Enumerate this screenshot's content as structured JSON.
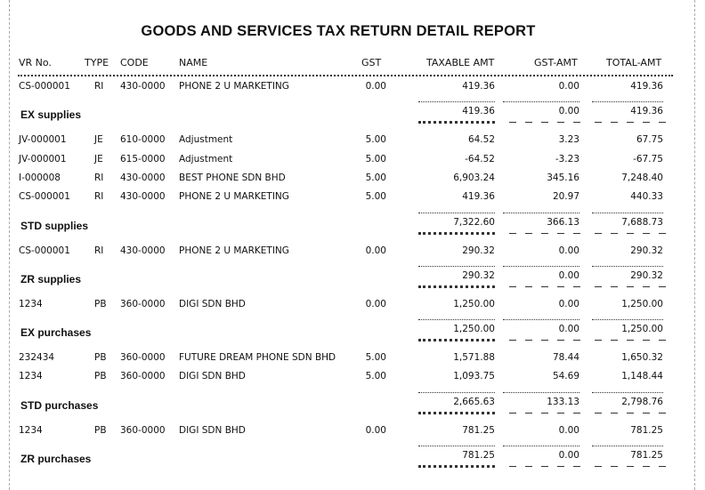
{
  "report": {
    "title": "GOODS AND SERVICES TAX RETURN DETAIL REPORT"
  },
  "columns": {
    "vr_no": "VR No.",
    "type": "TYPE",
    "code": "CODE",
    "name": "NAME",
    "gst": "GST",
    "taxable_amt": "TAXABLE AMT",
    "gst_amt": "GST-AMT",
    "total_amt": "TOTAL-AMT"
  },
  "groups": [
    {
      "label": "EX supplies",
      "rows": [
        {
          "vr": "CS-000001",
          "type": "RI",
          "code": "430-0000",
          "name": "PHONE 2 U MARKETING",
          "gst": "0.00",
          "taxable": "419.36",
          "gst_amt": "0.00",
          "total": "419.36"
        }
      ],
      "subtotal": {
        "taxable": "419.36",
        "gst_amt": "0.00",
        "total": "419.36"
      }
    },
    {
      "label": "STD supplies",
      "rows": [
        {
          "vr": "JV-000001",
          "type": "JE",
          "code": "610-0000",
          "name": "Adjustment",
          "gst": "5.00",
          "taxable": "64.52",
          "gst_amt": "3.23",
          "total": "67.75"
        },
        {
          "vr": "JV-000001",
          "type": "JE",
          "code": "615-0000",
          "name": "Adjustment",
          "gst": "5.00",
          "taxable": "-64.52",
          "gst_amt": "-3.23",
          "total": "-67.75"
        },
        {
          "vr": "I-000008",
          "type": "RI",
          "code": "430-0000",
          "name": "BEST PHONE SDN BHD",
          "gst": "5.00",
          "taxable": "6,903.24",
          "gst_amt": "345.16",
          "total": "7,248.40"
        },
        {
          "vr": "CS-000001",
          "type": "RI",
          "code": "430-0000",
          "name": "PHONE 2 U MARKETING",
          "gst": "5.00",
          "taxable": "419.36",
          "gst_amt": "20.97",
          "total": "440.33"
        }
      ],
      "subtotal": {
        "taxable": "7,322.60",
        "gst_amt": "366.13",
        "total": "7,688.73"
      }
    },
    {
      "label": "ZR supplies",
      "rows": [
        {
          "vr": "CS-000001",
          "type": "RI",
          "code": "430-0000",
          "name": "PHONE 2 U MARKETING",
          "gst": "0.00",
          "taxable": "290.32",
          "gst_amt": "0.00",
          "total": "290.32"
        }
      ],
      "subtotal": {
        "taxable": "290.32",
        "gst_amt": "0.00",
        "total": "290.32"
      }
    },
    {
      "label": "EX purchases",
      "rows": [
        {
          "vr": "1234",
          "type": "PB",
          "code": "360-0000",
          "name": "DIGI SDN BHD",
          "gst": "0.00",
          "taxable": "1,250.00",
          "gst_amt": "0.00",
          "total": "1,250.00"
        }
      ],
      "subtotal": {
        "taxable": "1,250.00",
        "gst_amt": "0.00",
        "total": "1,250.00"
      }
    },
    {
      "label": "STD purchases",
      "rows": [
        {
          "vr": "232434",
          "type": "PB",
          "code": "360-0000",
          "name": "FUTURE DREAM PHONE SDN BHD",
          "gst": "5.00",
          "taxable": "1,571.88",
          "gst_amt": "78.44",
          "total": "1,650.32"
        },
        {
          "vr": "1234",
          "type": "PB",
          "code": "360-0000",
          "name": "DIGI SDN BHD",
          "gst": "5.00",
          "taxable": "1,093.75",
          "gst_amt": "54.69",
          "total": "1,148.44"
        }
      ],
      "subtotal": {
        "taxable": "2,665.63",
        "gst_amt": "133.13",
        "total": "2,798.76"
      }
    },
    {
      "label": "ZR purchases",
      "rows": [
        {
          "vr": "1234",
          "type": "PB",
          "code": "360-0000",
          "name": "DIGI SDN BHD",
          "gst": "0.00",
          "taxable": "781.25",
          "gst_amt": "0.00",
          "total": "781.25"
        }
      ],
      "subtotal": {
        "taxable": "781.25",
        "gst_amt": "0.00",
        "total": "781.25"
      }
    }
  ]
}
